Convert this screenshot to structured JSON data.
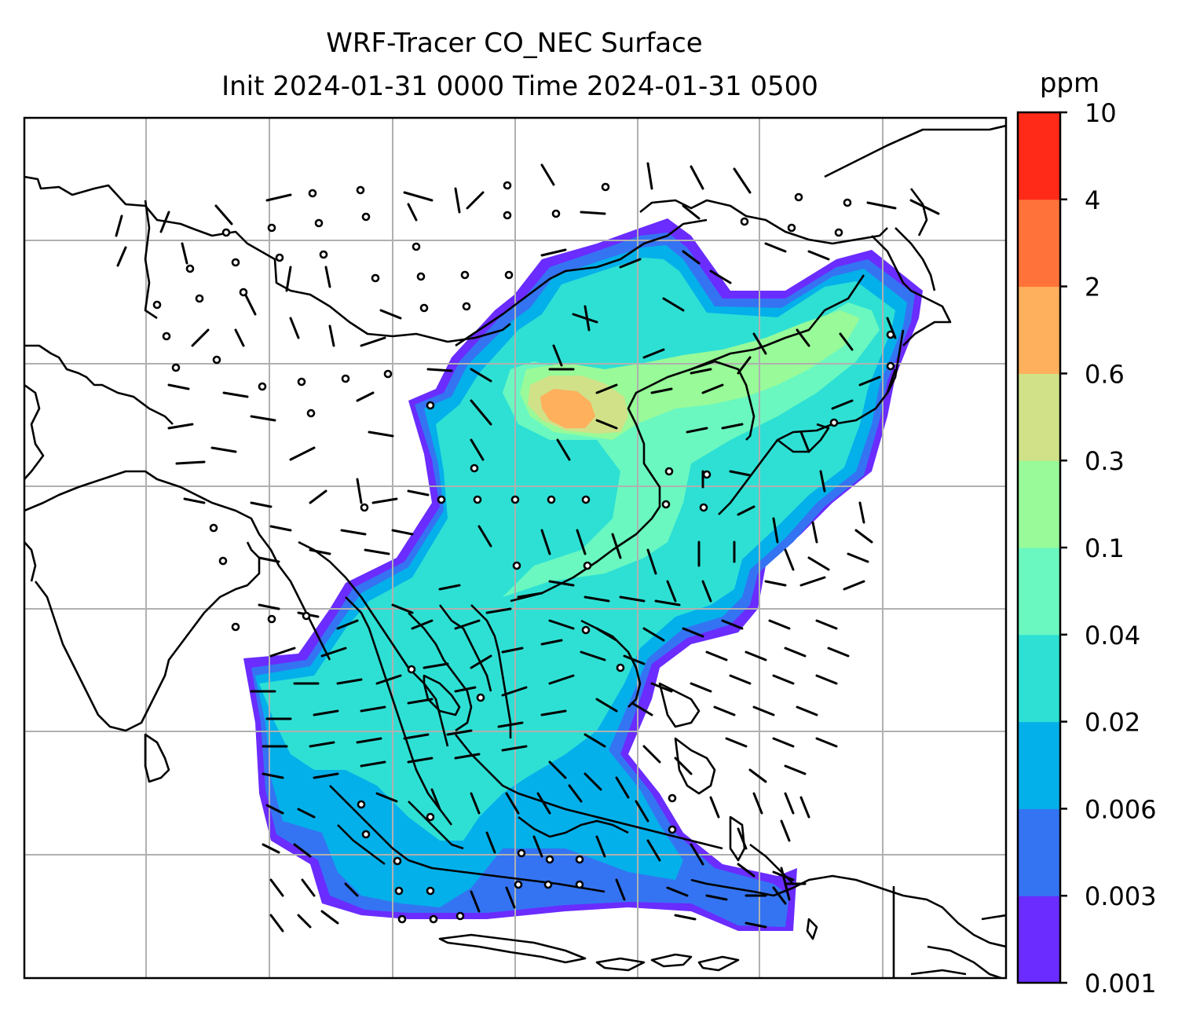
{
  "chart_data": {
    "type": "heatmap",
    "title": "WRF-Tracer CO_NEC Surface",
    "subtitle": "Init 2024-01-31 0000 Time 2024-01-31 0500",
    "colorbar": {
      "unit": "ppm",
      "levels": [
        "0.001",
        "0.003",
        "0.006",
        "0.02",
        "0.04",
        "0.1",
        "0.3",
        "0.6",
        "2",
        "4",
        "10"
      ],
      "colors": [
        "#6a2cff",
        "#3474f2",
        "#04b0ea",
        "#2ee0d4",
        "#6af8c0",
        "#98fa98",
        "#d0e188",
        "#ffb05c",
        "#ff733a",
        "#ff2a18"
      ]
    },
    "gridlines": true,
    "overlays": [
      "wind barbs",
      "coastlines"
    ]
  }
}
